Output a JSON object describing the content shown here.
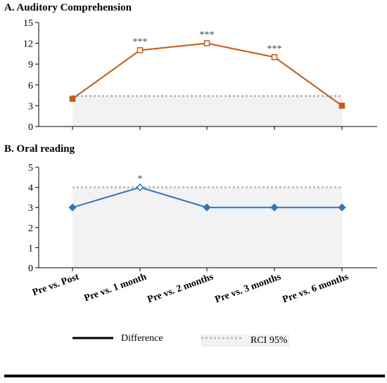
{
  "chart_data": [
    {
      "type": "line",
      "title": "A. Auditory Comprehension",
      "categories": [
        "Pre vs. Post",
        "Pre vs. 1 month",
        "Pre vs. 2 months",
        "Pre vs. 3 months",
        "Pre vs. 6 months"
      ],
      "series": [
        {
          "name": "Difference",
          "values": [
            4,
            11,
            12,
            10,
            3
          ],
          "color": "#C55A11",
          "significance": [
            "",
            "***",
            "***",
            "***",
            ""
          ]
        }
      ],
      "rci": {
        "label": "RCI 95%",
        "value": 4.4
      },
      "yticks": [
        "0",
        "3",
        "6",
        "9",
        "12",
        "15"
      ],
      "ylim": [
        0,
        15
      ],
      "xlabel": "",
      "ylabel": ""
    },
    {
      "type": "line",
      "title": "B.  Oral reading",
      "categories": [
        "Pre vs. Post",
        "Pre vs. 1 month",
        "Pre vs. 2 months",
        "Pre vs. 3 months",
        "Pre vs. 6 months"
      ],
      "series": [
        {
          "name": "Difference",
          "values": [
            3,
            4,
            3,
            3,
            3
          ],
          "color": "#2E75B6",
          "significance": [
            "",
            "*",
            "",
            "",
            ""
          ]
        }
      ],
      "rci": {
        "label": "RCI 95%",
        "value": 4
      },
      "yticks": [
        "0",
        "1",
        "2",
        "3",
        "4",
        "5"
      ],
      "ylim": [
        0,
        5
      ],
      "xlabel": "",
      "ylabel": ""
    }
  ],
  "legend": {
    "difference_label": "Difference",
    "rci_label": "RCI 95%"
  }
}
